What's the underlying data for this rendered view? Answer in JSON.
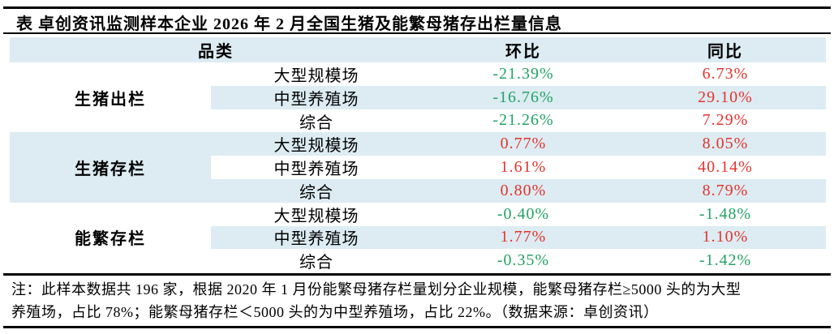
{
  "colors": {
    "accent_bg": "#dcecf2",
    "positive": "#e5332b",
    "negative": "#22a263",
    "rule": "#000000"
  },
  "chart_data": {
    "type": "table",
    "title": "表 卓创资讯监测样本企业 2026 年 2 月全国生猪及能繁母猪存出栏量信息",
    "headers": {
      "category": "品类",
      "mom": "环比",
      "yoy": "同比"
    },
    "groups": [
      {
        "label": "生猪出栏",
        "rows": [
          {
            "sub": "大型规模场",
            "mom": "-21.39%",
            "yoy": "6.73%"
          },
          {
            "sub": "中型养殖场",
            "mom": "-16.76%",
            "yoy": "29.10%"
          },
          {
            "sub": "综合",
            "mom": "-21.26%",
            "yoy": "7.29%"
          }
        ]
      },
      {
        "label": "生猪存栏",
        "rows": [
          {
            "sub": "大型规模场",
            "mom": "0.77%",
            "yoy": "8.05%"
          },
          {
            "sub": "中型养殖场",
            "mom": "1.61%",
            "yoy": "40.14%"
          },
          {
            "sub": "综合",
            "mom": "0.80%",
            "yoy": "8.79%"
          }
        ]
      },
      {
        "label": "能繁存栏",
        "rows": [
          {
            "sub": "大型规模场",
            "mom": "-0.40%",
            "yoy": "-1.48%"
          },
          {
            "sub": "中型养殖场",
            "mom": "1.77%",
            "yoy": "1.10%"
          },
          {
            "sub": "综合",
            "mom": "-0.35%",
            "yoy": "-1.42%"
          }
        ]
      }
    ],
    "note_lines": [
      "注：此样本数据共 196 家，根据 2020 年 1 月份能繁母猪存栏量划分企业规模，能繁母猪存栏≥5000 头的为大型",
      "养殖场，占比 78%；能繁母猪存栏＜5000 头的为中型养殖场，占比 22%。（数据来源：卓创资讯）"
    ]
  }
}
